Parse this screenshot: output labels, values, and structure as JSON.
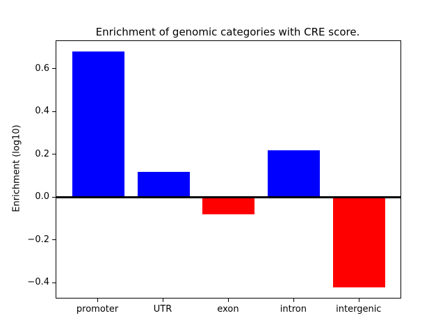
{
  "chart_data": {
    "type": "bar",
    "title": "Enrichment of genomic categories with CRE score.",
    "xlabel": "",
    "ylabel": "Enrichment (log10)",
    "categories": [
      "promoter",
      "UTR",
      "exon",
      "intron",
      "intergenic"
    ],
    "values": [
      0.68,
      0.12,
      -0.08,
      0.22,
      -0.42
    ],
    "bar_colors": [
      "#0000ff",
      "#0000ff",
      "#ff0000",
      "#0000ff",
      "#ff0000"
    ],
    "positive_color": "#0000ff",
    "negative_color": "#ff0000",
    "ylim": [
      -0.47,
      0.73
    ],
    "xlim": [
      -0.64,
      4.63
    ],
    "yticks": [
      -0.4,
      -0.2,
      0.0,
      0.2,
      0.4,
      0.6
    ],
    "bar_width": 0.8,
    "grid": false,
    "zero_line": true,
    "axis_color": "#000000",
    "background_color": "#ffffff"
  }
}
